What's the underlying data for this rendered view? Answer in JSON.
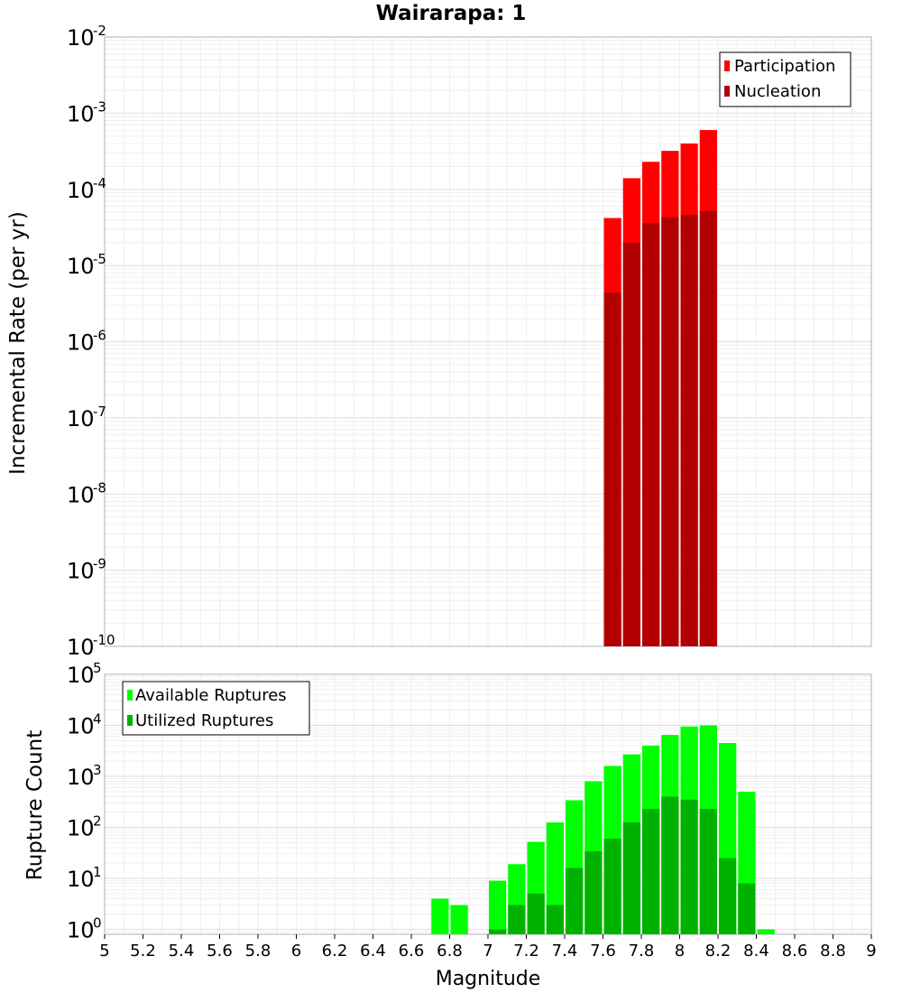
{
  "chart_data": [
    {
      "type": "bar",
      "title": "Wairarapa: 1",
      "xlabel": "Magnitude",
      "ylabel": "Incremental Rate (per yr)",
      "yscale": "log",
      "xlim": [
        5,
        9
      ],
      "ylim": [
        1e-10,
        0.01
      ],
      "ytick_base": "10",
      "ytick_exponents": [
        "-10",
        "-9",
        "-8",
        "-7",
        "-6",
        "-5",
        "-4",
        "-3",
        "-2"
      ],
      "bin_width": 0.1,
      "legend": [
        {
          "label": "Participation",
          "color": "#ff0000"
        },
        {
          "label": "Nucleation",
          "color": "#b20000"
        }
      ],
      "legend_position": "top-right",
      "series": [
        {
          "name": "Participation",
          "color": "#ff0000",
          "x": [
            7.65,
            7.75,
            7.85,
            7.95,
            8.05,
            8.15
          ],
          "values": [
            4.2e-05,
            0.00014,
            0.00023,
            0.00032,
            0.0004,
            0.0006
          ]
        },
        {
          "name": "Nucleation",
          "color": "#b20000",
          "x": [
            7.65,
            7.75,
            7.85,
            7.95,
            8.05,
            8.15
          ],
          "values": [
            4.4e-06,
            2e-05,
            3.6e-05,
            4.3e-05,
            4.6e-05,
            5.2e-05
          ]
        }
      ]
    },
    {
      "type": "bar",
      "xlabel": "Magnitude",
      "ylabel": "Rupture Count",
      "yscale": "log",
      "xlim": [
        5,
        9
      ],
      "ylim": [
        0.8,
        100000
      ],
      "ytick_base": "10",
      "ytick_exponents": [
        "0",
        "1",
        "2",
        "3",
        "4",
        "5"
      ],
      "xticks": [
        "5",
        "5.2",
        "5.4",
        "5.6",
        "5.8",
        "6",
        "6.2",
        "6.4",
        "6.6",
        "6.8",
        "7",
        "7.2",
        "7.4",
        "7.6",
        "7.8",
        "8",
        "8.2",
        "8.4",
        "8.6",
        "8.8",
        "9"
      ],
      "bin_width": 0.1,
      "legend": [
        {
          "label": "Available Ruptures",
          "color": "#00ff00"
        },
        {
          "label": "Utilized Ruptures",
          "color": "#00b200"
        }
      ],
      "legend_position": "top-left",
      "series": [
        {
          "name": "Available Ruptures",
          "color": "#00ff00",
          "x": [
            6.75,
            6.85,
            7.05,
            7.15,
            7.25,
            7.35,
            7.45,
            7.55,
            7.65,
            7.75,
            7.85,
            7.95,
            8.05,
            8.15,
            8.25,
            8.35,
            8.45
          ],
          "values": [
            4,
            3,
            9,
            19,
            52,
            125,
            340,
            800,
            1600,
            2700,
            4000,
            6500,
            9500,
            10000,
            4500,
            500,
            1
          ]
        },
        {
          "name": "Utilized Ruptures",
          "color": "#00b200",
          "x": [
            7.05,
            7.15,
            7.25,
            7.35,
            7.45,
            7.55,
            7.65,
            7.75,
            7.85,
            7.95,
            8.05,
            8.15,
            8.25,
            8.35
          ],
          "values": [
            1,
            3,
            5,
            3,
            16,
            34,
            60,
            125,
            230,
            400,
            350,
            230,
            25,
            8
          ]
        }
      ]
    }
  ]
}
